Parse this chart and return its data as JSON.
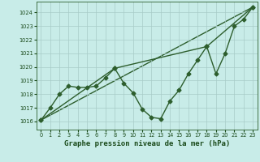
{
  "background_color": "#c8ece8",
  "grid_color": "#a8ccc8",
  "line_color": "#2d5e2d",
  "title": "Graphe pression niveau de la mer (hPa)",
  "xlim": [
    -0.5,
    23.5
  ],
  "ylim": [
    1015.4,
    1024.8
  ],
  "yticks": [
    1016,
    1017,
    1018,
    1019,
    1020,
    1021,
    1022,
    1023,
    1024
  ],
  "xticks": [
    0,
    1,
    2,
    3,
    4,
    5,
    6,
    7,
    8,
    9,
    10,
    11,
    12,
    13,
    14,
    15,
    16,
    17,
    18,
    19,
    20,
    21,
    22,
    23
  ],
  "series1_x": [
    0,
    1,
    2,
    3,
    4,
    5,
    6,
    7,
    8,
    9,
    10,
    11,
    12,
    13,
    14,
    15,
    16,
    17,
    18,
    19,
    20,
    21,
    22,
    23
  ],
  "series1_y": [
    1016.1,
    1017.0,
    1018.0,
    1018.6,
    1018.5,
    1018.5,
    1018.6,
    1019.2,
    1019.9,
    1018.8,
    1018.1,
    1016.9,
    1016.3,
    1016.2,
    1017.5,
    1018.3,
    1019.5,
    1020.5,
    1021.5,
    1019.5,
    1021.0,
    1023.0,
    1023.5,
    1024.4
  ],
  "series2_x": [
    0,
    8,
    18,
    23
  ],
  "series2_y": [
    1016.1,
    1019.9,
    1021.5,
    1024.4
  ],
  "series3_x": [
    0,
    23
  ],
  "series3_y": [
    1016.1,
    1024.4
  ],
  "marker": "D",
  "markersize": 2.5,
  "linewidth": 1.0,
  "title_fontsize": 6.5,
  "tick_fontsize": 4.8,
  "title_color": "#1a4a1a"
}
